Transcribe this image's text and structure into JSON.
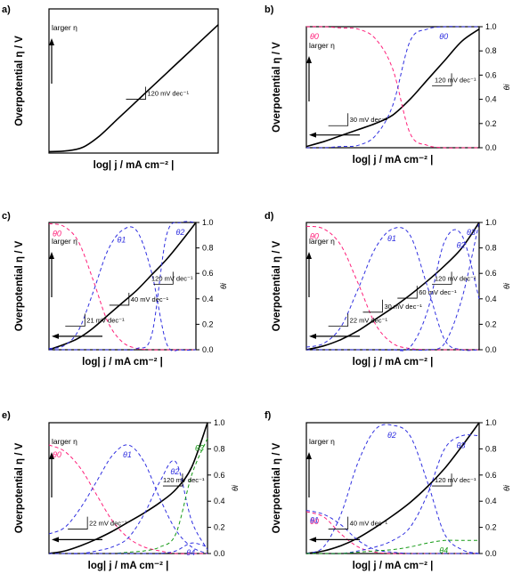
{
  "figure": {
    "left_axis_label": "Overpotential η / V",
    "right_axis_label": "θi",
    "x_axis_label": "log| j / mA cm⁻² |",
    "larger_eta": "larger η"
  },
  "colors": {
    "tafel": "#000000",
    "theta0": "#ff1f7a",
    "theta_main": "#3030e0",
    "theta_green": "#159a15"
  },
  "chart_data": [
    {
      "panel": "a)",
      "type": "line",
      "xlabel": "log| j / mA cm⁻² |",
      "ylabel": "Overpotential η / V",
      "x": [
        0,
        0.1,
        0.2,
        0.3,
        0.4,
        0.5,
        0.6,
        0.7,
        0.8,
        0.9,
        1
      ],
      "series": [
        {
          "role": "tafel",
          "values": [
            0.01,
            0.015,
            0.04,
            0.12,
            0.23,
            0.34,
            0.45,
            0.56,
            0.67,
            0.78,
            0.89
          ]
        }
      ],
      "annotations": [
        {
          "text": "120 mV dec⁻¹"
        }
      ],
      "arrow": "up"
    },
    {
      "panel": "b)",
      "type": "line",
      "xlabel": "log| j / mA cm⁻² |",
      "ylabel": "Overpotential η / V",
      "y2label": "θi",
      "y2lim": [
        0,
        1
      ],
      "y2ticks": [
        "0.0",
        "0.2",
        "0.4",
        "0.6",
        "0.8",
        "1.0"
      ],
      "x": [
        0,
        0.1,
        0.2,
        0.3,
        0.4,
        0.5,
        0.6,
        0.7,
        0.8,
        0.9,
        1
      ],
      "series": [
        {
          "role": "tafel",
          "values": [
            0.01,
            0.05,
            0.1,
            0.15,
            0.2,
            0.27,
            0.4,
            0.56,
            0.72,
            0.88,
            0.98
          ]
        },
        {
          "name": "θ0",
          "role": "theta0",
          "values": [
            1.0,
            1.0,
            0.99,
            0.98,
            0.9,
            0.65,
            0.12,
            0.02,
            0.0,
            0.0,
            0.0
          ]
        },
        {
          "name": "θ0",
          "role": "theta_main",
          "values": [
            0.0,
            0.0,
            0.01,
            0.02,
            0.1,
            0.35,
            0.88,
            0.98,
            1.0,
            1.0,
            1.0
          ]
        }
      ],
      "annotations": [
        {
          "text": "30 mV dec⁻¹"
        },
        {
          "text": "120 mV dec⁻¹"
        }
      ],
      "arrow": "left"
    },
    {
      "panel": "c)",
      "type": "line",
      "xlabel": "log| j / mA cm⁻² |",
      "ylabel": "Overpotential η / V",
      "y2label": "θi",
      "y2lim": [
        0,
        1
      ],
      "y2ticks": [
        "0.0",
        "0.2",
        "0.4",
        "0.6",
        "0.8",
        "1.0"
      ],
      "x": [
        0,
        0.1,
        0.2,
        0.3,
        0.4,
        0.5,
        0.6,
        0.7,
        0.8,
        0.9,
        1
      ],
      "series": [
        {
          "role": "tafel",
          "values": [
            0.0,
            0.04,
            0.09,
            0.17,
            0.27,
            0.37,
            0.47,
            0.59,
            0.71,
            0.85,
            1.0
          ]
        },
        {
          "name": "θ0",
          "role": "theta0",
          "values": [
            0.99,
            0.97,
            0.85,
            0.55,
            0.22,
            0.06,
            0.01,
            0.0,
            0.0,
            0.0,
            0.0
          ]
        },
        {
          "name": "θ1",
          "role": "theta_main",
          "values": [
            0.01,
            0.03,
            0.15,
            0.45,
            0.78,
            0.94,
            0.93,
            0.6,
            0.05,
            0.0,
            0.0
          ]
        },
        {
          "name": "θ2",
          "role": "theta_main",
          "values": [
            0.0,
            0.0,
            0.0,
            0.0,
            0.0,
            0.0,
            0.01,
            0.12,
            0.9,
            1.0,
            1.0
          ]
        }
      ],
      "annotations": [
        {
          "text": "21 mV dec⁻¹"
        },
        {
          "text": "40 mV dec⁻¹"
        },
        {
          "text": "120 mV dec⁻¹"
        }
      ],
      "arrow": "left"
    },
    {
      "panel": "d)",
      "type": "line",
      "xlabel": "log| j / mA cm⁻² |",
      "ylabel": "Overpotential η / V",
      "y2label": "θi",
      "y2lim": [
        0,
        1
      ],
      "y2ticks": [
        "0.0",
        "0.2",
        "0.4",
        "0.6",
        "0.8",
        "1.0"
      ],
      "x": [
        0,
        0.1,
        0.2,
        0.3,
        0.4,
        0.5,
        0.6,
        0.7,
        0.8,
        0.9,
        1
      ],
      "series": [
        {
          "role": "tafel",
          "values": [
            0.0,
            0.03,
            0.08,
            0.15,
            0.24,
            0.33,
            0.43,
            0.54,
            0.66,
            0.8,
            1.0
          ]
        },
        {
          "name": "θ0",
          "role": "theta0",
          "values": [
            0.97,
            0.95,
            0.82,
            0.52,
            0.2,
            0.05,
            0.01,
            0.0,
            0.0,
            0.0,
            0.0
          ]
        },
        {
          "name": "θ1",
          "role": "theta_main",
          "values": [
            0.02,
            0.05,
            0.18,
            0.48,
            0.8,
            0.95,
            0.9,
            0.5,
            0.08,
            0.0,
            0.0
          ]
        },
        {
          "name": "θ2",
          "role": "theta_main",
          "values": [
            0.0,
            0.0,
            0.0,
            0.0,
            0.0,
            0.0,
            0.02,
            0.3,
            0.85,
            0.9,
            0.4
          ]
        },
        {
          "name": "θ3",
          "role": "theta_main",
          "values": [
            0.0,
            0.0,
            0.0,
            0.0,
            0.0,
            0.0,
            0.0,
            0.0,
            0.05,
            0.4,
            1.0
          ]
        }
      ],
      "annotations": [
        {
          "text": "22 mV dec⁻¹"
        },
        {
          "text": "30 mV dec⁻¹"
        },
        {
          "text": "60 mV dec⁻¹"
        },
        {
          "text": "120 mV dec⁻¹"
        }
      ],
      "arrow": "left"
    },
    {
      "panel": "e)",
      "type": "line",
      "xlabel": "log| j / mA cm⁻² |",
      "ylabel": "Overpotential η / V",
      "y2label": "θi",
      "y2lim": [
        0,
        1
      ],
      "y2ticks": [
        "0.0",
        "0.2",
        "0.4",
        "0.6",
        "0.8",
        "1.0"
      ],
      "x": [
        0,
        0.1,
        0.2,
        0.3,
        0.4,
        0.5,
        0.6,
        0.7,
        0.8,
        0.9,
        1
      ],
      "series": [
        {
          "role": "tafel",
          "values": [
            0.0,
            0.02,
            0.06,
            0.11,
            0.17,
            0.24,
            0.31,
            0.39,
            0.49,
            0.66,
            1.0
          ]
        },
        {
          "name": "θ0",
          "role": "theta0",
          "values": [
            0.83,
            0.78,
            0.65,
            0.45,
            0.25,
            0.12,
            0.05,
            0.02,
            0.0,
            0.0,
            0.0
          ]
        },
        {
          "name": "θ1",
          "role": "theta_main",
          "values": [
            0.15,
            0.2,
            0.35,
            0.55,
            0.75,
            0.83,
            0.7,
            0.42,
            0.18,
            0.05,
            0.0
          ]
        },
        {
          "name": "θ2",
          "role": "theta_main",
          "values": [
            0.0,
            0.0,
            0.0,
            0.02,
            0.05,
            0.12,
            0.3,
            0.55,
            0.7,
            0.25,
            0.03
          ]
        },
        {
          "name": "θ3",
          "role": "theta_green",
          "values": [
            0.0,
            0.0,
            0.0,
            0.0,
            0.0,
            0.01,
            0.02,
            0.05,
            0.15,
            0.6,
            0.88
          ]
        },
        {
          "name": "θ4",
          "role": "theta_main",
          "values": [
            0.0,
            0.0,
            0.0,
            0.0,
            0.0,
            0.0,
            0.0,
            0.0,
            0.02,
            0.08,
            0.05
          ]
        }
      ],
      "annotations": [
        {
          "text": "22 mV dec⁻¹"
        },
        {
          "text": "120 mV dec⁻¹"
        }
      ],
      "arrow": "left"
    },
    {
      "panel": "f)",
      "type": "line",
      "xlabel": "log| j / mA cm⁻² |",
      "ylabel": "Overpotential η / V",
      "y2label": "θi",
      "y2lim": [
        0,
        1
      ],
      "y2ticks": [
        "0.0",
        "0.2",
        "0.4",
        "0.6",
        "0.8",
        "1.0"
      ],
      "x": [
        0,
        0.1,
        0.2,
        0.3,
        0.4,
        0.5,
        0.6,
        0.7,
        0.8,
        0.9,
        1
      ],
      "series": [
        {
          "role": "tafel",
          "values": [
            0.0,
            0.02,
            0.06,
            0.12,
            0.2,
            0.29,
            0.39,
            0.51,
            0.65,
            0.82,
            1.0
          ]
        },
        {
          "name": "θ0",
          "role": "theta0",
          "values": [
            0.32,
            0.28,
            0.15,
            0.05,
            0.01,
            0.0,
            0.0,
            0.0,
            0.0,
            0.0,
            0.0
          ]
        },
        {
          "name": "θ1",
          "role": "theta_main",
          "values": [
            0.33,
            0.3,
            0.22,
            0.1,
            0.03,
            0.01,
            0.0,
            0.0,
            0.0,
            0.0,
            0.0
          ]
        },
        {
          "name": "θ2",
          "role": "theta_main",
          "values": [
            0.0,
            0.05,
            0.3,
            0.7,
            0.95,
            0.98,
            0.9,
            0.55,
            0.15,
            0.03,
            0.0
          ]
        },
        {
          "name": "θ3",
          "role": "theta_main",
          "values": [
            0.0,
            0.0,
            0.0,
            0.02,
            0.05,
            0.1,
            0.2,
            0.45,
            0.8,
            0.9,
            0.9
          ]
        },
        {
          "name": "θ4",
          "role": "theta_green",
          "values": [
            0.0,
            0.0,
            0.0,
            0.01,
            0.02,
            0.03,
            0.05,
            0.08,
            0.1,
            0.1,
            0.1
          ]
        }
      ],
      "annotations": [
        {
          "text": "40 mV dec⁻¹"
        },
        {
          "text": "120 mV dec⁻¹"
        }
      ],
      "arrow": "left"
    }
  ]
}
